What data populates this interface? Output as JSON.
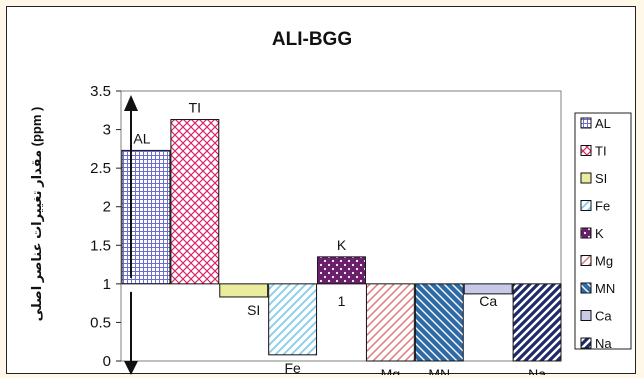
{
  "chart_data": {
    "type": "bar",
    "title": "ALI-BGG",
    "ylabel": "مقدار تغییرات عناصر اصلی (ppm )",
    "xlabel": "",
    "ylim": [
      0,
      3.5
    ],
    "baseline": 1,
    "yticks": [
      0,
      0.5,
      1,
      1.5,
      2,
      2.5,
      3,
      3.5
    ],
    "ytick_labels": [
      "0",
      "0.5",
      "1",
      "1.5",
      "2",
      "2.5",
      "3",
      "3.5"
    ],
    "grid": false,
    "legend_position": "right",
    "categories": [
      "AL",
      "TI",
      "SI",
      "Fe",
      "K",
      "Mg",
      "MN",
      "Ca",
      "Na"
    ],
    "values": [
      2.73,
      3.13,
      0.83,
      0.08,
      1.35,
      0,
      0,
      0.87,
      0
    ],
    "bar_labels": [
      "AL",
      "TI",
      "SI",
      "Fe",
      "K",
      "Mg",
      "MN",
      "Ca",
      "Na"
    ],
    "annotations": [
      "1"
    ],
    "series_colors": {
      "AL": "#6a6fd0",
      "TI": "#d6286a",
      "SI": "#ecec9e",
      "Fe": "#8fd0ec",
      "K": "#6b1f6b",
      "Mg": "#e07a7a",
      "MN": "#2e6aa6",
      "Ca": "#c8c8e8",
      "Na": "#1f2a6a"
    }
  }
}
